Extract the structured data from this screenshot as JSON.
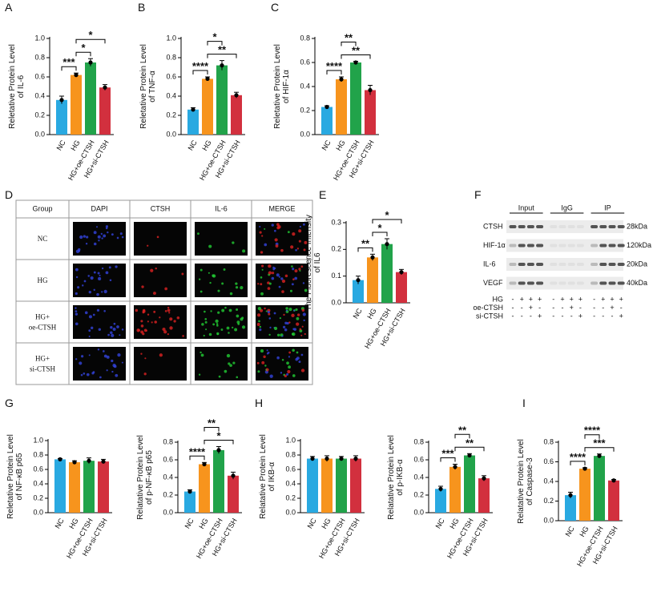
{
  "chart_data": [
    {
      "type": "bar",
      "panel": "A",
      "ylabel": [
        "Reletative Protein Level",
        "of  IL-6"
      ],
      "categories": [
        "NC",
        "HG",
        "HG+oe-CTSH",
        "HG+si-CTSH"
      ],
      "values": [
        0.36,
        0.62,
        0.75,
        0.49
      ],
      "errors": [
        0.04,
        0.02,
        0.04,
        0.03
      ],
      "colors": [
        "#29a9e1",
        "#f7941d",
        "#21a34a",
        "#d2303e"
      ],
      "ylim": [
        0,
        1
      ],
      "yticks": [
        {
          "value": 0,
          "label": "0.0"
        },
        0.2,
        0.4,
        0.6,
        0.8,
        {
          "value": 1,
          "label": "1.0"
        }
      ],
      "annotations": [
        {
          "text": "***",
          "between": [
            "NC",
            "HG"
          ]
        },
        {
          "text": "*",
          "between": [
            "HG",
            "HG+oe-CTSH"
          ]
        },
        {
          "text": "*",
          "between": [
            "HG",
            "HG+si-CTSH"
          ]
        }
      ]
    },
    {
      "type": "bar",
      "panel": "B",
      "ylabel": [
        "Reletative Protein Level",
        "of  TNF-α"
      ],
      "categories": [
        "NC",
        "HG",
        "HG+oe-CTSH",
        "HG+si-CTSH"
      ],
      "values": [
        0.26,
        0.58,
        0.72,
        0.41
      ],
      "errors": [
        0.02,
        0.02,
        0.05,
        0.03
      ],
      "colors": [
        "#29a9e1",
        "#f7941d",
        "#21a34a",
        "#d2303e"
      ],
      "ylim": [
        0,
        1
      ],
      "yticks": [
        {
          "value": 0,
          "label": "0.0"
        },
        0.2,
        0.4,
        0.6,
        0.8,
        {
          "value": 1,
          "label": "1.0"
        }
      ],
      "annotations": [
        {
          "text": "****",
          "between": [
            "NC",
            "HG"
          ]
        },
        {
          "text": "**",
          "between": [
            "HG",
            "HG+si-CTSH"
          ]
        },
        {
          "text": "*",
          "between": [
            "HG",
            "HG+oe-CTSH"
          ]
        }
      ]
    },
    {
      "type": "bar",
      "panel": "C",
      "ylabel": [
        "Reletative Protein Level",
        "of  HIF-1α"
      ],
      "categories": [
        "NC",
        "HG",
        "HG+oe-CTSH",
        "HG+si-CTSH"
      ],
      "values": [
        0.23,
        0.46,
        0.6,
        0.37
      ],
      "errors": [
        0.01,
        0.02,
        0.01,
        0.04
      ],
      "colors": [
        "#29a9e1",
        "#f7941d",
        "#21a34a",
        "#d2303e"
      ],
      "ylim": [
        0,
        0.8
      ],
      "yticks": [
        {
          "value": 0,
          "label": "0.0"
        },
        0.2,
        0.4,
        0.6,
        0.8
      ],
      "annotations": [
        {
          "text": "****",
          "between": [
            "NC",
            "HG"
          ]
        },
        {
          "text": "**",
          "between": [
            "HG",
            "HG+si-CTSH"
          ]
        },
        {
          "text": "**",
          "between": [
            "HG",
            "HG+oe-CTSH"
          ]
        }
      ]
    },
    {
      "type": "bar",
      "panel": "E",
      "ylabel": [
        "The Fluorescence Intensity",
        "of IL6"
      ],
      "categories": [
        "NC",
        "HG",
        "HG+oe-CTSH",
        "HG+si-CTSH"
      ],
      "values": [
        0.085,
        0.17,
        0.22,
        0.115
      ],
      "errors": [
        0.015,
        0.012,
        0.02,
        0.01
      ],
      "colors": [
        "#29a9e1",
        "#f7941d",
        "#21a34a",
        "#d2303e"
      ],
      "ylim": [
        0,
        0.3
      ],
      "yticks": [
        {
          "value": 0,
          "label": "0.0"
        },
        0.1,
        0.2,
        0.3
      ],
      "annotations": [
        {
          "text": "**",
          "between": [
            "NC",
            "HG"
          ]
        },
        {
          "text": "*",
          "between": [
            "HG",
            "HG+oe-CTSH"
          ]
        },
        {
          "text": "*",
          "between": [
            "HG",
            "HG+si-CTSH"
          ]
        }
      ]
    },
    {
      "type": "bar",
      "panel": "G",
      "ylabel": [
        "Reletative Protein Level",
        "of  NF-κB p65"
      ],
      "categories": [
        "NC",
        "HG",
        "HG+oe-CTSH",
        "HG+si-CTSH"
      ],
      "values": [
        0.74,
        0.7,
        0.72,
        0.71
      ],
      "errors": [
        0.01,
        0.02,
        0.04,
        0.03
      ],
      "colors": [
        "#29a9e1",
        "#f7941d",
        "#21a34a",
        "#d2303e"
      ],
      "ylim": [
        0,
        1
      ],
      "yticks": [
        {
          "value": 0,
          "label": "0.0"
        },
        0.2,
        0.4,
        0.6,
        0.8,
        {
          "value": 1,
          "label": "1.0"
        }
      ],
      "annotations": []
    },
    {
      "type": "bar",
      "ylabel": [
        "Relatative Protein Level",
        "of  p-NF-κB p65"
      ],
      "categories": [
        "NC",
        "HG",
        "HG+oe-CTSH",
        "HG+si-CTSH"
      ],
      "values": [
        0.24,
        0.55,
        0.71,
        0.42
      ],
      "errors": [
        0.02,
        0.02,
        0.04,
        0.04
      ],
      "colors": [
        "#29a9e1",
        "#f7941d",
        "#21a34a",
        "#d2303e"
      ],
      "ylim": [
        0,
        0.8
      ],
      "yticks": [
        {
          "value": 0,
          "label": "0.0"
        },
        0.2,
        0.4,
        0.6,
        0.8
      ],
      "annotations": [
        {
          "text": "****",
          "between": [
            "NC",
            "HG"
          ]
        },
        {
          "text": "*",
          "between": [
            "HG",
            "HG+si-CTSH"
          ]
        },
        {
          "text": "**",
          "between": [
            "HG",
            "HG+oe-CTSH"
          ]
        }
      ]
    },
    {
      "type": "bar",
      "panel": "H",
      "ylabel": [
        "Relatative Protein Level",
        "of  IKB-α"
      ],
      "categories": [
        "NC",
        "HG",
        "HG+oe-CTSH",
        "HG+si-CTSH"
      ],
      "values": [
        0.75,
        0.75,
        0.75,
        0.75
      ],
      "errors": [
        0.03,
        0.04,
        0.03,
        0.04
      ],
      "colors": [
        "#29a9e1",
        "#f7941d",
        "#21a34a",
        "#d2303e"
      ],
      "ylim": [
        0,
        1
      ],
      "yticks": [
        {
          "value": 0,
          "label": "0.0"
        },
        0.2,
        0.4,
        0.6,
        0.8,
        {
          "value": 1,
          "label": "1.0"
        }
      ],
      "annotations": []
    },
    {
      "type": "bar",
      "ylabel": [
        "Relatative Protein Level",
        "of  p-IKB-α"
      ],
      "categories": [
        "NC",
        "HG",
        "HG+oe-CTSH",
        "HG+si-CTSH"
      ],
      "values": [
        0.27,
        0.52,
        0.65,
        0.39
      ],
      "errors": [
        0.03,
        0.03,
        0.02,
        0.03
      ],
      "colors": [
        "#29a9e1",
        "#f7941d",
        "#21a34a",
        "#d2303e"
      ],
      "ylim": [
        0,
        0.8
      ],
      "yticks": [
        {
          "value": 0,
          "label": "0.0"
        },
        0.2,
        0.4,
        0.6,
        0.8
      ],
      "annotations": [
        {
          "text": "***",
          "between": [
            "NC",
            "HG"
          ]
        },
        {
          "text": "**",
          "between": [
            "HG",
            "HG+si-CTSH"
          ]
        },
        {
          "text": "**",
          "between": [
            "HG",
            "HG+oe-CTSH"
          ]
        }
      ]
    },
    {
      "type": "bar",
      "panel": "I",
      "ylabel": [
        "Relatative Protein Level",
        "of  Caspase-3"
      ],
      "categories": [
        "NC",
        "HG",
        "HG+oe-CTSH",
        "HG+si-CTSH"
      ],
      "values": [
        0.26,
        0.53,
        0.66,
        0.41
      ],
      "errors": [
        0.03,
        0.01,
        0.02,
        0.01
      ],
      "colors": [
        "#29a9e1",
        "#f7941d",
        "#21a34a",
        "#d2303e"
      ],
      "ylim": [
        0,
        0.8
      ],
      "yticks": [
        {
          "value": 0,
          "label": "0.0"
        },
        0.2,
        0.4,
        0.6,
        0.8
      ],
      "annotations": [
        {
          "text": "****",
          "between": [
            "NC",
            "HG"
          ]
        },
        {
          "text": "***",
          "between": [
            "HG",
            "HG+si-CTSH"
          ]
        },
        {
          "text": "****",
          "between": [
            "HG",
            "HG+oe-CTSH"
          ]
        }
      ]
    }
  ],
  "panel_d": {
    "panel": "D",
    "header": [
      "Group",
      "DAPI",
      "CTSH",
      "IL-6",
      "MERGE"
    ],
    "rows": [
      [
        "NC"
      ],
      [
        "HG"
      ],
      [
        "HG+",
        "oe-CTSH"
      ],
      [
        "HG+",
        "si-CTSH"
      ]
    ]
  },
  "panel_f": {
    "panel": "F",
    "groups": [
      "Input",
      "IgG",
      "IP"
    ],
    "bands": [
      {
        "name": "CTSH",
        "size": "28kDa"
      },
      {
        "name": "HIF-1α",
        "size": "120kDa"
      },
      {
        "name": "IL-6",
        "size": "20kDa"
      },
      {
        "name": "VEGF",
        "size": "40kDa"
      }
    ],
    "conditions": [
      {
        "name": "HG",
        "signs": [
          "-",
          "+",
          "+",
          "+",
          "-",
          "+",
          "+",
          "+",
          "-",
          "+",
          "+",
          "+"
        ]
      },
      {
        "name": "oe-CTSH",
        "signs": [
          "-",
          "-",
          "+",
          "-",
          "-",
          "-",
          "+",
          "-",
          "-",
          "-",
          "+",
          "-"
        ]
      },
      {
        "name": "si-CTSH",
        "signs": [
          "-",
          "-",
          "-",
          "+",
          "-",
          "-",
          "-",
          "+",
          "-",
          "-",
          "-",
          "+"
        ]
      }
    ]
  }
}
